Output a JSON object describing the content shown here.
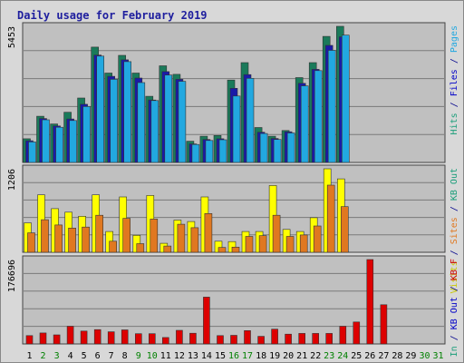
{
  "chart_data": {
    "type": "bar",
    "title": "Daily usage for February 2019",
    "panels": [
      {
        "id": "hits",
        "ytick_label": "5453",
        "max": 5453,
        "right_label_parts": [
          {
            "text": "Hits",
            "color": "#1a9e7a"
          },
          {
            "text": " / ",
            "color": "#00008b"
          },
          {
            "text": "Files",
            "color": "#0000c8"
          },
          {
            "text": " / ",
            "color": "#00008b"
          },
          {
            "text": "Pages",
            "color": "#22a8e0"
          }
        ],
        "series": [
          {
            "name": "Hits",
            "color": "#1a7a5a",
            "values": [
              950,
              1850,
              1540,
              2010,
              2580,
              4620,
              3580,
              4290,
              3580,
              2650,
              3870,
              3530,
              850,
              1050,
              1080,
              3300,
              4000,
              1400,
              1050,
              1280,
              3400,
              4000,
              5050,
              5453
            ]
          },
          {
            "name": "Files",
            "color": "#1a1aa8",
            "values": [
              870,
              1760,
              1460,
              1740,
              2330,
              4300,
              3450,
              4110,
              3380,
              2500,
              3640,
              3330,
              740,
              920,
              950,
              2970,
              3520,
              1210,
              960,
              1230,
              3170,
              3730,
              4690,
              5030
            ]
          },
          {
            "name": "Pages",
            "color": "#22a8e0",
            "values": [
              820,
              1710,
              1410,
              1680,
              2240,
              4260,
              3330,
              4040,
              3200,
              2480,
              3500,
              3250,
              720,
              880,
              910,
              2660,
              3370,
              1160,
              920,
              1180,
              3070,
              3680,
              4490,
              5100
            ]
          }
        ]
      },
      {
        "id": "visits",
        "ytick_label": "1206",
        "max": 1206,
        "right_label_parts": [
          {
            "text": "Visits",
            "color": "#c8c800"
          },
          {
            "text": " / ",
            "color": "#00008b"
          },
          {
            "text": "Sites",
            "color": "#e07820"
          },
          {
            "text": " / ",
            "color": "#00008b"
          },
          {
            "text": "KB Out",
            "color": "#1a9e7a"
          }
        ],
        "series": [
          {
            "name": "Visits",
            "color": "#ffff00",
            "values": [
              425,
              830,
              630,
              580,
              520,
              830,
              300,
              800,
              245,
              820,
              130,
              465,
              445,
              800,
              160,
              155,
              300,
              300,
              965,
              330,
              300,
              500,
              1206,
              1060
            ]
          },
          {
            "name": "Sites",
            "color": "#e07820",
            "values": [
              280,
              470,
              395,
              350,
              365,
              535,
              160,
              490,
              125,
              480,
              90,
              405,
              355,
              560,
              70,
              75,
              230,
              240,
              535,
              230,
              250,
              380,
              970,
              660
            ]
          }
        ]
      },
      {
        "id": "kb",
        "ytick_label": "176696",
        "max": 176696,
        "right_label_parts": [
          {
            "text": "KB In",
            "color": "#1a9e7a"
          },
          {
            "text": " / ",
            "color": "#00008b"
          },
          {
            "text": "KB Out",
            "color": "#0000c8"
          },
          {
            "text": " / ",
            "color": "#00008b"
          },
          {
            "text": "KB F",
            "color": "#cc0000"
          }
        ],
        "series": [
          {
            "name": "KB F",
            "color": "#dd0000",
            "values": [
              17500,
              23000,
              19000,
              37000,
              27000,
              30000,
              25500,
              29500,
              21500,
              21500,
              13500,
              28500,
              22500,
              98000,
              17500,
              18000,
              28000,
              16000,
              31000,
              20500,
              22000,
              22000,
              22000,
              37000,
              46000,
              176696,
              82000
            ]
          }
        ]
      }
    ],
    "categories": [
      "1",
      "2",
      "3",
      "4",
      "5",
      "6",
      "7",
      "8",
      "9",
      "10",
      "11",
      "12",
      "13",
      "14",
      "15",
      "16",
      "17",
      "18",
      "19",
      "20",
      "21",
      "22",
      "23",
      "24",
      "25",
      "26",
      "27",
      "28",
      "29",
      "30",
      "31"
    ],
    "weekend_days": [
      2,
      3,
      9,
      10,
      16,
      17,
      23,
      24,
      30,
      31
    ],
    "weekday_color": "#000000",
    "weekend_color": "#008000"
  }
}
